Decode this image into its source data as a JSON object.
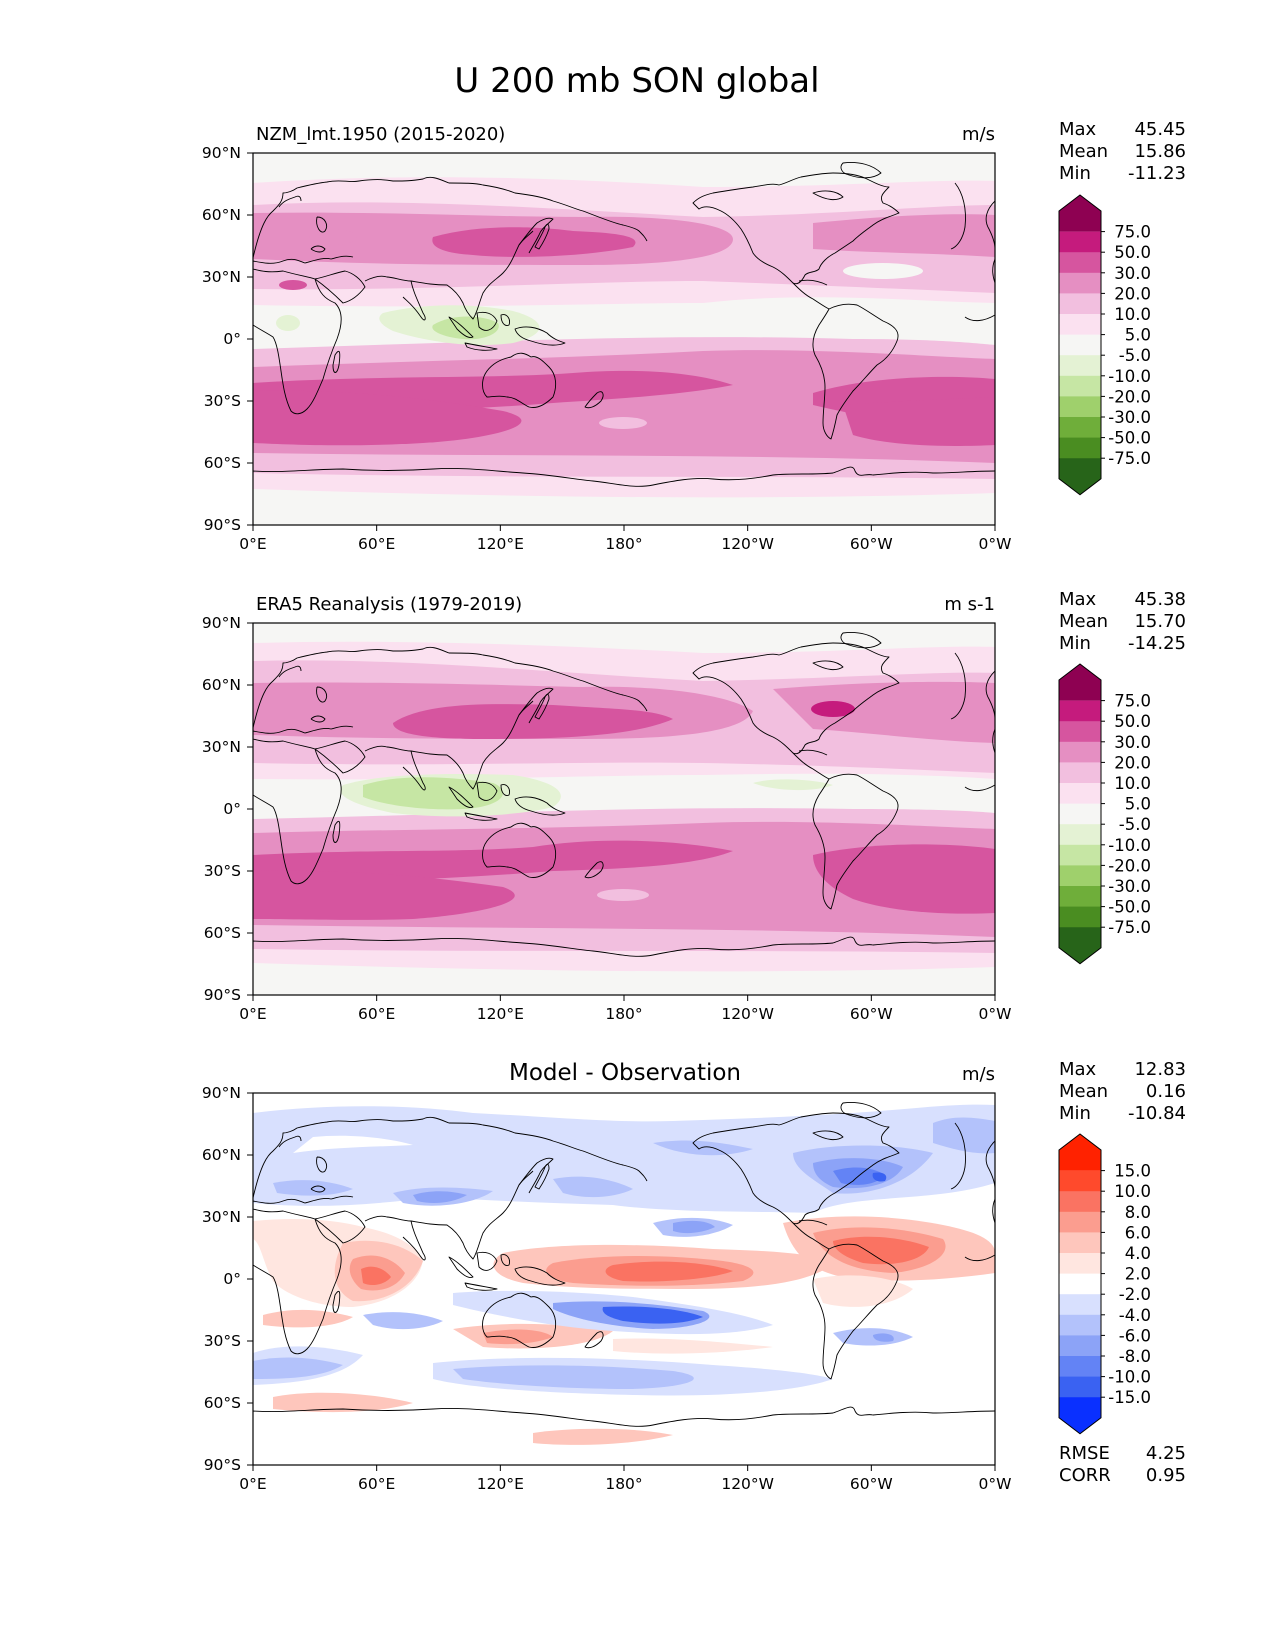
{
  "figure": {
    "title": "U 200 mb SON global"
  },
  "axes": {
    "lat_ticks": [
      "90°N",
      "60°N",
      "30°N",
      "0°",
      "30°S",
      "60°S",
      "90°S"
    ],
    "lon_ticks": [
      "0°E",
      "60°E",
      "120°E",
      "180°",
      "120°W",
      "60°W",
      "0°W"
    ]
  },
  "panels": [
    {
      "id": "model",
      "title": "NZM_lmt.1950 (2015-2020)",
      "title_position": "left",
      "units": "m/s",
      "stats": [
        {
          "label": "Max",
          "value": "45.45"
        },
        {
          "label": "Mean",
          "value": "15.86"
        },
        {
          "label": "Min",
          "value": "-11.23"
        }
      ],
      "colorbar": "clim"
    },
    {
      "id": "obs",
      "title": "ERA5 Reanalysis (1979-2019)",
      "title_position": "left",
      "units": "m s-1",
      "stats": [
        {
          "label": "Max",
          "value": "45.38"
        },
        {
          "label": "Mean",
          "value": "15.70"
        },
        {
          "label": "Min",
          "value": "-14.25"
        }
      ],
      "colorbar": "clim"
    },
    {
      "id": "diff",
      "title": "Model - Observation",
      "title_position": "center",
      "units": "m/s",
      "stats": [
        {
          "label": "Max",
          "value": "12.83"
        },
        {
          "label": "Mean",
          "value": "0.16"
        },
        {
          "label": "Min",
          "value": "-10.84"
        }
      ],
      "colorbar": "diff",
      "extra_stats": [
        {
          "label": "RMSE",
          "value": "4.25"
        },
        {
          "label": "CORR",
          "value": "0.95"
        }
      ]
    }
  ],
  "colorbars": {
    "clim": {
      "labels": [
        "75.0",
        "50.0",
        "30.0",
        "20.0",
        "10.0",
        "5.0",
        "-5.0",
        "-10.0",
        "-20.0",
        "-30.0",
        "-50.0",
        "-75.0"
      ],
      "colors": [
        "#8e0152",
        "#c51b7d",
        "#d6559f",
        "#e58fc2",
        "#f2bfdf",
        "#fbe1f0",
        "#f6f6f4",
        "#e4f2d4",
        "#c6e6a4",
        "#9fd06c",
        "#6fae3a",
        "#4a8d21",
        "#276419"
      ]
    },
    "diff": {
      "labels": [
        "15.0",
        "10.0",
        "8.0",
        "6.0",
        "4.0",
        "2.0",
        "-2.0",
        "-4.0",
        "-6.0",
        "-8.0",
        "-10.0",
        "-15.0"
      ],
      "colors": [
        "#ff2200",
        "#ff4a2c",
        "#fa7362",
        "#fb9d8f",
        "#fec6bc",
        "#ffe6e0",
        "#ffffff",
        "#d8e0fe",
        "#b3c2fb",
        "#8ca3f7",
        "#6383f5",
        "#3a62f2",
        "#0a30ff"
      ]
    }
  }
}
